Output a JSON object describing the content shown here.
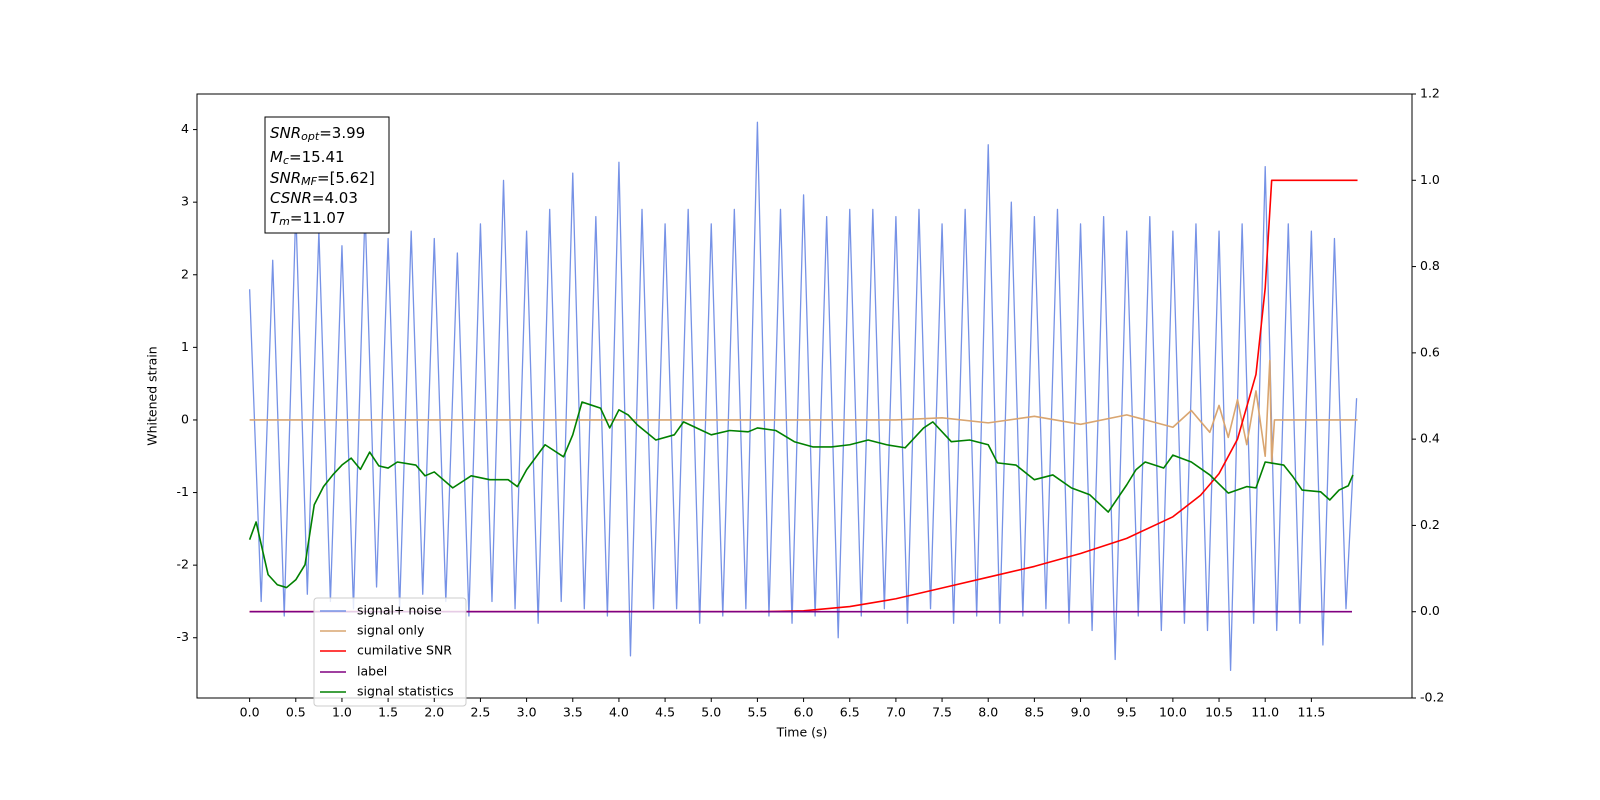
{
  "chart_data": {
    "type": "line",
    "xlabel": "Time (s)",
    "ylabel": "Whitened strain",
    "xlim": [
      -0.57,
      12.59
    ],
    "ylim": [
      -3.83,
      4.49
    ],
    "y2lim": [
      -0.2,
      1.2
    ],
    "xticks": [
      {
        "value": 0,
        "label": "0.0"
      },
      0.5,
      {
        "value": 1,
        "label": "1.0"
      },
      1.5,
      {
        "value": 2,
        "label": "2.0"
      },
      2.5,
      {
        "value": 3,
        "label": "3.0"
      },
      3.5,
      {
        "value": 4,
        "label": "4.0"
      },
      4.5,
      {
        "value": 5,
        "label": "5.0"
      },
      5.5,
      {
        "value": 6,
        "label": "6.0"
      },
      6.5,
      {
        "value": 7,
        "label": "7.0"
      },
      7.5,
      {
        "value": 8,
        "label": "8.0"
      },
      8.5,
      {
        "value": 9,
        "label": "9.0"
      },
      9.5,
      {
        "value": 10,
        "label": "10.0"
      },
      10.5,
      {
        "value": 11,
        "label": "11.0"
      },
      11.5
    ],
    "yticks": [
      -3,
      -2,
      -1,
      0,
      1,
      2,
      3,
      4
    ],
    "y2ticks": [
      -0.2,
      {
        "value": 0,
        "label": "0.0"
      },
      0.2,
      0.4,
      0.6,
      0.8,
      {
        "value": 1,
        "label": "1.0"
      },
      1.2
    ],
    "legend": "lower left",
    "annotations": [
      {
        "base": "SNR",
        "sub": "opt",
        "rest": "=3.99"
      },
      {
        "base": "M",
        "sub": "c",
        "rest": "=15.41"
      },
      {
        "base": "SNR",
        "sub": "MF",
        "rest": "=[5.62]"
      },
      {
        "base": "CSNR",
        "sub": "",
        "rest": "=4.03"
      },
      {
        "base": "T",
        "sub": "m",
        "rest": "=11.07"
      }
    ],
    "series": [
      {
        "name": "signal+ noise",
        "color": "#7692e6",
        "x": [
          0,
          0.125,
          0.25,
          0.375,
          0.5,
          0.625,
          0.75,
          0.875,
          1,
          1.125,
          1.25,
          1.375,
          1.5,
          1.625,
          1.75,
          1.875,
          2,
          2.125,
          2.25,
          2.375,
          2.5,
          2.625,
          2.75,
          2.875,
          3,
          3.125,
          3.25,
          3.375,
          3.5,
          3.625,
          3.75,
          3.875,
          4,
          4.125,
          4.25,
          4.375,
          4.5,
          4.625,
          4.75,
          4.875,
          5,
          5.125,
          5.25,
          5.375,
          5.5,
          5.625,
          5.75,
          5.875,
          6,
          6.125,
          6.25,
          6.375,
          6.5,
          6.625,
          6.75,
          6.875,
          7,
          7.125,
          7.25,
          7.375,
          7.5,
          7.625,
          7.75,
          7.875,
          8,
          8.125,
          8.25,
          8.375,
          8.5,
          8.625,
          8.75,
          8.875,
          9,
          9.125,
          9.25,
          9.375,
          9.5,
          9.625,
          9.75,
          9.875,
          10,
          10.125,
          10.25,
          10.375,
          10.5,
          10.625,
          10.75,
          10.875,
          11,
          11.125,
          11.25,
          11.375,
          11.5,
          11.625,
          11.75,
          11.875,
          11.99
        ],
        "values": [
          1.8,
          -2.5,
          2.2,
          -2.7,
          2.9,
          -2.4,
          2.6,
          -2.5,
          2.4,
          -2.6,
          2.9,
          -2.3,
          2.5,
          -2.6,
          2.6,
          -2.4,
          2.5,
          -2.5,
          2.3,
          -2.7,
          2.7,
          -2.5,
          3.3,
          -2.6,
          2.6,
          -2.8,
          2.9,
          -2.5,
          3.4,
          -2.6,
          2.8,
          -2.7,
          3.55,
          -3.25,
          2.9,
          -2.6,
          2.7,
          -2.6,
          2.9,
          -2.8,
          2.7,
          -2.7,
          2.9,
          -2.6,
          4.1,
          -2.7,
          2.9,
          -2.8,
          3.1,
          -2.7,
          2.8,
          -3.0,
          2.9,
          -2.7,
          2.9,
          -2.6,
          2.8,
          -2.8,
          2.9,
          -2.6,
          2.7,
          -2.8,
          2.9,
          -2.7,
          3.79,
          -2.8,
          3.0,
          -2.7,
          2.8,
          -2.6,
          2.9,
          -2.8,
          2.7,
          -2.9,
          2.8,
          -3.3,
          2.6,
          -2.7,
          2.8,
          -2.9,
          2.6,
          -2.8,
          2.7,
          -2.9,
          2.6,
          -3.45,
          2.7,
          -2.8,
          3.49,
          -2.9,
          2.7,
          -2.8,
          2.6,
          -3.1,
          2.5,
          -2.6,
          0.3
        ]
      },
      {
        "name": "signal only",
        "color": "#d9a570",
        "x": [
          0,
          7.0,
          7.5,
          8.0,
          8.5,
          9.0,
          9.5,
          10.0,
          10.2,
          10.4,
          10.5,
          10.6,
          10.7,
          10.8,
          10.9,
          11.0,
          11.05,
          11.07,
          11.1,
          12.0
        ],
        "values": [
          0,
          0,
          0.03,
          -0.04,
          0.05,
          -0.06,
          0.07,
          -0.1,
          0.13,
          -0.17,
          0.2,
          -0.24,
          0.28,
          -0.34,
          0.4,
          -0.5,
          0.82,
          -0.6,
          0,
          0
        ]
      },
      {
        "name": "cumilative SNR",
        "color": "#ff0000",
        "axis": "y2",
        "x": [
          0,
          5.5,
          6.0,
          6.5,
          7.0,
          7.5,
          8.0,
          8.5,
          9.0,
          9.5,
          10.0,
          10.3,
          10.5,
          10.7,
          10.9,
          11.0,
          11.07,
          12.0
        ],
        "values": [
          0,
          0,
          0.002,
          0.012,
          0.03,
          0.055,
          0.08,
          0.105,
          0.135,
          0.17,
          0.22,
          0.27,
          0.32,
          0.4,
          0.55,
          0.75,
          1.0,
          1.0
        ]
      },
      {
        "name": "label",
        "color": "#800080",
        "axis": "y2",
        "x": [
          0,
          11.94
        ],
        "values": [
          0,
          0
        ]
      },
      {
        "name": "signal statistics",
        "color": "#008000",
        "axis": "y2",
        "x": [
          0,
          0.07,
          0.2,
          0.3,
          0.4,
          0.5,
          0.6,
          0.7,
          0.8,
          0.9,
          1.0,
          1.1,
          1.2,
          1.3,
          1.4,
          1.5,
          1.6,
          1.8,
          1.9,
          2.0,
          2.2,
          2.4,
          2.6,
          2.8,
          2.9,
          3.0,
          3.2,
          3.4,
          3.5,
          3.6,
          3.7,
          3.8,
          3.9,
          4.0,
          4.1,
          4.2,
          4.4,
          4.6,
          4.7,
          4.9,
          5.0,
          5.2,
          5.4,
          5.5,
          5.7,
          5.9,
          6.1,
          6.3,
          6.5,
          6.7,
          6.9,
          7.1,
          7.3,
          7.4,
          7.6,
          7.8,
          8.0,
          8.1,
          8.3,
          8.5,
          8.7,
          8.9,
          9.1,
          9.3,
          9.5,
          9.6,
          9.7,
          9.9,
          10.0,
          10.2,
          10.4,
          10.6,
          10.8,
          10.9,
          11.0,
          11.2,
          11.3,
          11.4,
          11.6,
          11.7,
          11.8,
          11.9,
          11.95
        ],
        "values": [
          0.167,
          0.208,
          0.086,
          0.0625,
          0.056,
          0.074,
          0.109,
          0.248,
          0.29,
          0.317,
          0.34,
          0.356,
          0.33,
          0.37,
          0.338,
          0.333,
          0.347,
          0.34,
          0.315,
          0.324,
          0.287,
          0.315,
          0.306,
          0.306,
          0.29,
          0.329,
          0.387,
          0.359,
          0.41,
          0.486,
          0.479,
          0.472,
          0.426,
          0.468,
          0.456,
          0.433,
          0.398,
          0.41,
          0.44,
          0.42,
          0.41,
          0.42,
          0.417,
          0.426,
          0.42,
          0.394,
          0.382,
          0.382,
          0.387,
          0.398,
          0.387,
          0.38,
          0.426,
          0.44,
          0.394,
          0.398,
          0.387,
          0.345,
          0.34,
          0.306,
          0.317,
          0.287,
          0.271,
          0.231,
          0.294,
          0.329,
          0.347,
          0.333,
          0.363,
          0.347,
          0.317,
          0.275,
          0.29,
          0.287,
          0.347,
          0.34,
          0.313,
          0.282,
          0.278,
          0.259,
          0.282,
          0.292,
          0.317
        ]
      }
    ]
  }
}
